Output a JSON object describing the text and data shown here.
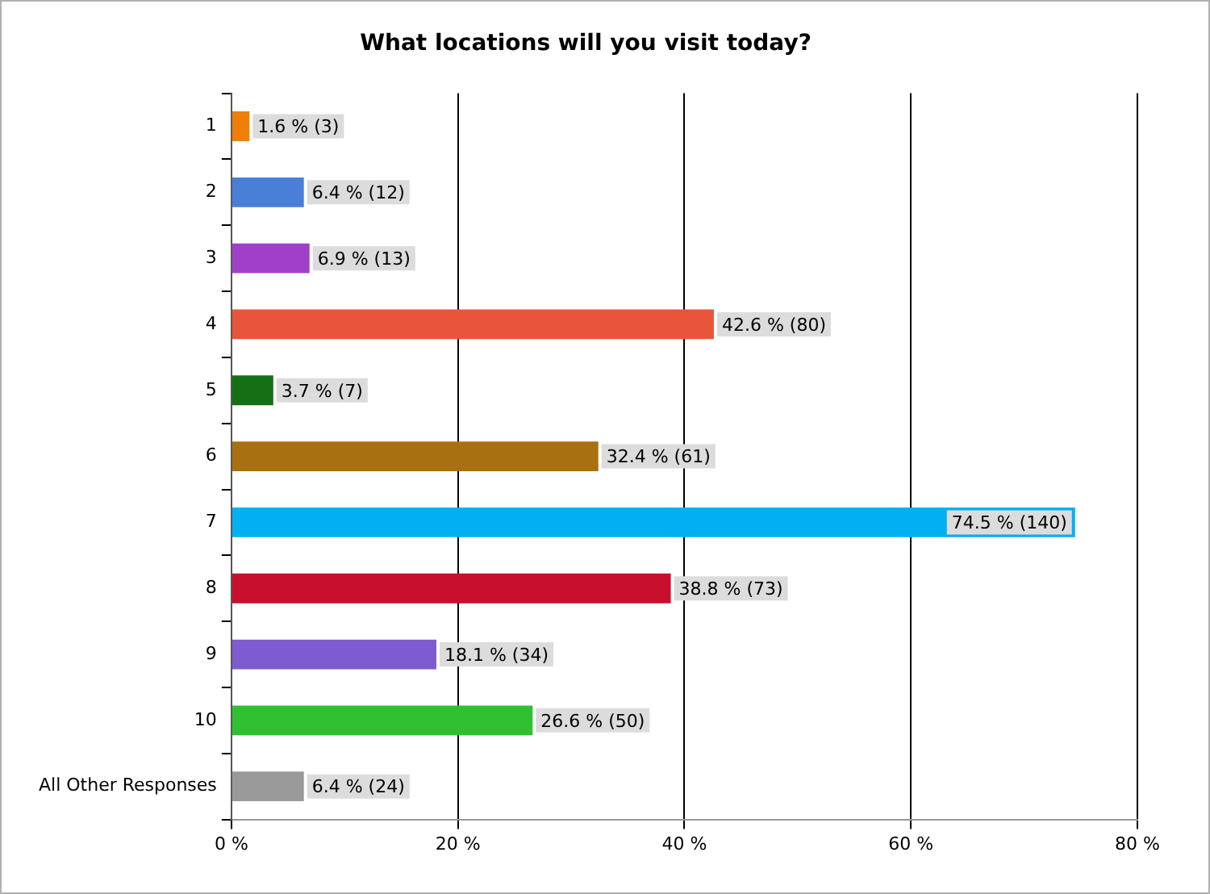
{
  "chart_data": {
    "type": "bar",
    "orientation": "horizontal",
    "title": "What locations will you visit today?",
    "categories": [
      "1",
      "2",
      "3",
      "4",
      "5",
      "6",
      "7",
      "8",
      "9",
      "10",
      "All Other Responses"
    ],
    "values": [
      1.6,
      6.4,
      6.9,
      42.6,
      3.7,
      32.4,
      74.5,
      38.8,
      18.1,
      26.6,
      6.4
    ],
    "colors": [
      "#f07f09",
      "#4a7fd8",
      "#a040c8",
      "#e8553a",
      "#157015",
      "#a87010",
      "#00b0f0",
      "#c8102e",
      "#7e5cd0",
      "#2ec02e",
      "#9a9a9a"
    ],
    "value_labels": [
      "1.6 % (3)",
      "6.4 % (12)",
      "6.9 % (13)",
      "42.6 % (80)",
      "3.7 % (7)",
      "32.4 % (61)",
      "74.5 % (140)",
      "38.8 % (73)",
      "18.1 % (34)",
      "26.6 % (50)",
      "6.4 % (24)"
    ],
    "xlim": [
      0,
      80
    ],
    "xticks": [
      {
        "value": 0,
        "label": "0 %"
      },
      {
        "value": 20,
        "label": "20 %"
      },
      {
        "value": 40,
        "label": "40 %"
      },
      {
        "value": 60,
        "label": "60 %"
      },
      {
        "value": 80,
        "label": "80 %"
      }
    ],
    "grid": "x",
    "legend": false
  }
}
